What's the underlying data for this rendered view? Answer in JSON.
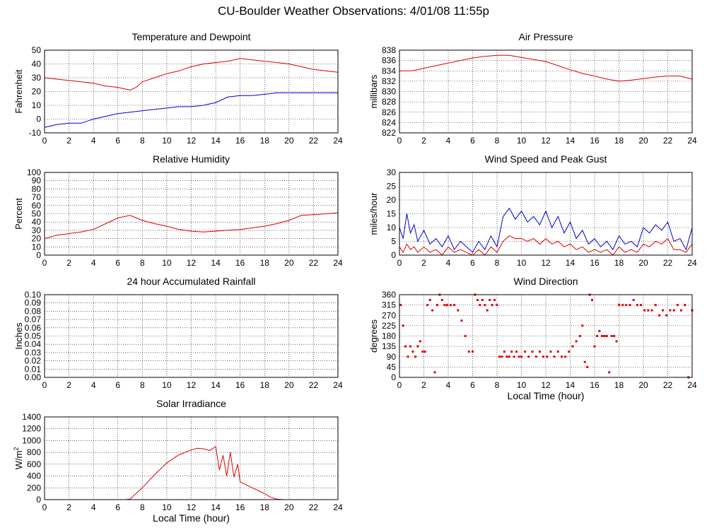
{
  "page_title": "CU-Boulder Weather Observations: 4/01/08 11:55p",
  "colors": {
    "primary": "#dd0000",
    "secondary": "#0000cc",
    "grid": "#000000"
  },
  "chart_data": [
    {
      "id": "temperature",
      "type": "line",
      "title": "Temperature and Dewpoint",
      "xlabel": "",
      "ylabel": "Fahrenheit",
      "xlim": [
        0,
        24
      ],
      "ylim": [
        -10,
        50
      ],
      "xticks": [
        0,
        2,
        4,
        6,
        8,
        10,
        12,
        14,
        16,
        18,
        20,
        22,
        24
      ],
      "yticks": [
        -10,
        0,
        10,
        20,
        30,
        40,
        50
      ],
      "ytick_labels": [
        "-10",
        "0",
        "10",
        "20",
        "30",
        "40",
        "50"
      ],
      "grid": true,
      "series": [
        {
          "color": "#dd0000",
          "x": [
            0,
            1,
            2,
            3,
            4,
            5,
            6,
            6.5,
            7,
            7.5,
            8,
            9,
            10,
            11,
            12,
            13,
            14,
            15,
            16,
            17,
            18,
            19,
            20,
            21,
            22,
            23,
            24
          ],
          "y": [
            30,
            29,
            28,
            27,
            26,
            24,
            23,
            22,
            21,
            23,
            27,
            30,
            33,
            35,
            38,
            40,
            41,
            42,
            44,
            43,
            42,
            41,
            40,
            38,
            36,
            35,
            34
          ]
        },
        {
          "color": "#0000cc",
          "x": [
            0,
            1,
            2,
            3,
            4,
            5,
            6,
            7,
            8,
            9,
            10,
            11,
            12,
            13,
            14,
            15,
            16,
            17,
            18,
            19,
            20,
            21,
            22,
            23,
            24
          ],
          "y": [
            -6,
            -4,
            -3,
            -3,
            0,
            2,
            4,
            5,
            6,
            7,
            8,
            9,
            9,
            10,
            12,
            16,
            17,
            17,
            18,
            19,
            19,
            19,
            19,
            19,
            19
          ]
        }
      ]
    },
    {
      "id": "pressure",
      "type": "line",
      "title": "Air Pressure",
      "xlabel": "",
      "ylabel": "millibars",
      "xlim": [
        0,
        24
      ],
      "ylim": [
        822,
        838
      ],
      "xticks": [
        0,
        2,
        4,
        6,
        8,
        10,
        12,
        14,
        16,
        18,
        20,
        22,
        24
      ],
      "yticks": [
        822,
        824,
        826,
        828,
        830,
        832,
        834,
        836,
        838
      ],
      "ytick_labels": [
        "822",
        "824",
        "826",
        "828",
        "830",
        "832",
        "834",
        "836",
        "838"
      ],
      "grid": true,
      "series": [
        {
          "color": "#dd0000",
          "x": [
            0,
            1,
            2,
            3,
            4,
            5,
            6,
            7,
            8,
            9,
            10,
            11,
            12,
            13,
            14,
            15,
            16,
            17,
            18,
            19,
            20,
            21,
            22,
            23,
            24
          ],
          "y": [
            834,
            834,
            834.5,
            835,
            835.5,
            836,
            836.5,
            836.8,
            837,
            837,
            836.6,
            836.2,
            835.8,
            835,
            834.2,
            833.5,
            833,
            832.4,
            832,
            832.2,
            832.5,
            832.8,
            833,
            833,
            832.4
          ]
        }
      ]
    },
    {
      "id": "humidity",
      "type": "line",
      "title": "Relative Humidity",
      "xlabel": "",
      "ylabel": "Percent",
      "xlim": [
        0,
        24
      ],
      "ylim": [
        0,
        100
      ],
      "xticks": [
        0,
        2,
        4,
        6,
        8,
        10,
        12,
        14,
        16,
        18,
        20,
        22,
        24
      ],
      "yticks": [
        0,
        10,
        20,
        30,
        40,
        50,
        60,
        70,
        80,
        90,
        100
      ],
      "ytick_labels": [
        "0",
        "10",
        "20",
        "30",
        "40",
        "50",
        "60",
        "70",
        "80",
        "90",
        "100"
      ],
      "grid": true,
      "series": [
        {
          "color": "#dd0000",
          "x": [
            0,
            1,
            2,
            3,
            4,
            5,
            6,
            7,
            8,
            9,
            10,
            11,
            12,
            13,
            14,
            15,
            16,
            17,
            18,
            19,
            20,
            21,
            22,
            23,
            24
          ],
          "y": [
            20,
            24,
            26,
            28,
            31,
            38,
            45,
            48,
            42,
            38,
            35,
            31,
            29,
            28,
            29,
            30,
            31,
            33,
            35,
            38,
            42,
            48,
            49,
            50,
            51
          ]
        }
      ]
    },
    {
      "id": "wind-speed",
      "type": "line",
      "title": "Wind Speed and Peak Gust",
      "xlabel": "",
      "ylabel": "miles/hour",
      "xlim": [
        0,
        24
      ],
      "ylim": [
        0,
        30
      ],
      "xticks": [
        0,
        2,
        4,
        6,
        8,
        10,
        12,
        14,
        16,
        18,
        20,
        22,
        24
      ],
      "yticks": [
        0,
        5,
        10,
        15,
        20,
        25,
        30
      ],
      "ytick_labels": [
        "0",
        "5",
        "10",
        "15",
        "20",
        "25",
        "30"
      ],
      "grid": true,
      "series": [
        {
          "color": "#0000cc",
          "x": [
            0,
            0.3,
            0.6,
            0.9,
            1.2,
            1.5,
            2,
            2.5,
            3,
            3.5,
            4,
            4.5,
            5,
            5.5,
            6,
            6.5,
            7,
            7.5,
            8,
            8.5,
            9,
            9.5,
            10,
            10.5,
            11,
            11.5,
            12,
            12.5,
            13,
            13.5,
            14,
            14.5,
            15,
            15.5,
            16,
            16.5,
            17,
            17.5,
            18,
            18.5,
            19,
            19.5,
            20,
            20.5,
            21,
            21.5,
            22,
            22.5,
            23,
            23.5,
            24
          ],
          "y": [
            10,
            6,
            15,
            8,
            11,
            5,
            9,
            4,
            6,
            3,
            7,
            2,
            5,
            3,
            1,
            5,
            2,
            7,
            3,
            14,
            17,
            13,
            16,
            12,
            14,
            11,
            16,
            10,
            14,
            8,
            12,
            6,
            9,
            4,
            6,
            3,
            5,
            2,
            7,
            4,
            5,
            3,
            10,
            8,
            11,
            9,
            12,
            5,
            6,
            2,
            10
          ]
        },
        {
          "color": "#dd0000",
          "x": [
            0,
            0.3,
            0.6,
            0.9,
            1.2,
            1.5,
            2,
            2.5,
            3,
            3.5,
            4,
            4.5,
            5,
            5.5,
            6,
            6.5,
            7,
            7.5,
            8,
            8.5,
            9,
            9.5,
            10,
            10.5,
            11,
            11.5,
            12,
            12.5,
            13,
            13.5,
            14,
            14.5,
            15,
            15.5,
            16,
            16.5,
            17,
            17.5,
            18,
            18.5,
            19,
            19.5,
            20,
            20.5,
            21,
            21.5,
            22,
            22.5,
            23,
            23.5,
            24
          ],
          "y": [
            3,
            1,
            4,
            2,
            3,
            1,
            3,
            1,
            2,
            0,
            3,
            1,
            2,
            1,
            0,
            2,
            0,
            3,
            1,
            5,
            7,
            6,
            6,
            5,
            6,
            4,
            6,
            4,
            5,
            3,
            4,
            2,
            3,
            1,
            2,
            1,
            2,
            0,
            3,
            1,
            2,
            1,
            4,
            3,
            5,
            4,
            6,
            2,
            2,
            1,
            4
          ]
        }
      ]
    },
    {
      "id": "rainfall",
      "type": "line",
      "title": "24 hour Accumulated Rainfall",
      "xlabel": "",
      "ylabel": "Inches",
      "xlim": [
        0,
        24
      ],
      "ylim": [
        0,
        0.1
      ],
      "xticks": [
        0,
        2,
        4,
        6,
        8,
        10,
        12,
        14,
        16,
        18,
        20,
        22,
        24
      ],
      "yticks": [
        0,
        0.01,
        0.02,
        0.03,
        0.04,
        0.05,
        0.06,
        0.07,
        0.08,
        0.09,
        0.1
      ],
      "ytick_labels": [
        "0.00",
        "0.01",
        "0.02",
        "0.03",
        "0.04",
        "0.05",
        "0.06",
        "0.07",
        "0.08",
        "0.09",
        "0.10"
      ],
      "grid": true,
      "series": [
        {
          "color": "#dd0000",
          "x": [
            0,
            24
          ],
          "y": [
            0,
            0
          ]
        }
      ]
    },
    {
      "id": "wind-direction",
      "type": "scatter",
      "title": "Wind Direction",
      "xlabel": "Local Time (hour)",
      "ylabel": "degrees",
      "xlim": [
        0,
        24
      ],
      "ylim": [
        0,
        360
      ],
      "xticks": [
        0,
        2,
        4,
        6,
        8,
        10,
        12,
        14,
        16,
        18,
        20,
        22,
        24
      ],
      "yticks": [
        0,
        45,
        90,
        135,
        180,
        225,
        270,
        315,
        360
      ],
      "ytick_labels": [
        "0",
        "45",
        "90",
        "135",
        "180",
        "225",
        "270",
        "315",
        "360"
      ],
      "grid": true,
      "series": [
        {
          "color": "#dd0000",
          "x": [
            0.1,
            0.3,
            0.5,
            0.7,
            0.9,
            1.1,
            1.3,
            1.5,
            1.7,
            1.9,
            2.1,
            2.3,
            2.5,
            2.7,
            2.9,
            3.1,
            3.3,
            3.5,
            3.7,
            3.9,
            4.2,
            4.5,
            4.8,
            5.1,
            5.4,
            5.7,
            6.0,
            6.2,
            6.4,
            6.6,
            6.8,
            7.0,
            7.2,
            7.4,
            7.6,
            7.8,
            8.0,
            8.2,
            8.4,
            8.6,
            8.8,
            9.0,
            9.2,
            9.4,
            9.6,
            9.8,
            10.0,
            10.3,
            10.6,
            10.9,
            11.2,
            11.5,
            11.8,
            12.1,
            12.4,
            12.7,
            13.0,
            13.3,
            13.6,
            13.9,
            14.2,
            14.5,
            14.8,
            15.0,
            15.2,
            15.4,
            15.6,
            15.8,
            16.0,
            16.2,
            16.4,
            16.6,
            16.8,
            17.0,
            17.2,
            17.4,
            17.6,
            17.8,
            18.0,
            18.3,
            18.6,
            18.9,
            19.2,
            19.5,
            19.8,
            20.1,
            20.4,
            20.7,
            21.0,
            21.3,
            21.6,
            21.9,
            22.2,
            22.5,
            22.8,
            23.1,
            23.4,
            23.7,
            24.0
          ],
          "y": [
            315,
            225,
            135,
            90,
            135,
            112,
            90,
            135,
            157,
            112,
            112,
            315,
            337,
            292,
            22,
            315,
            360,
            337,
            315,
            315,
            315,
            315,
            292,
            247,
            180,
            112,
            112,
            360,
            337,
            315,
            337,
            315,
            292,
            337,
            315,
            337,
            315,
            90,
            90,
            112,
            90,
            90,
            112,
            90,
            112,
            90,
            90,
            112,
            90,
            112,
            90,
            112,
            90,
            90,
            112,
            90,
            112,
            90,
            90,
            112,
            135,
            157,
            180,
            225,
            67,
            45,
            360,
            337,
            135,
            180,
            202,
            180,
            180,
            180,
            22,
            180,
            180,
            157,
            315,
            315,
            315,
            315,
            337,
            315,
            315,
            292,
            292,
            292,
            315,
            270,
            292,
            270,
            292,
            292,
            315,
            292,
            315,
            0,
            292
          ]
        }
      ]
    },
    {
      "id": "solar",
      "type": "line",
      "title": "Solar Irradiance",
      "xlabel": "Local Time (hour)",
      "ylabel": "W/m",
      "ylabel_sup": "2",
      "xlim": [
        0,
        24
      ],
      "ylim": [
        0,
        1400
      ],
      "xticks": [
        0,
        2,
        4,
        6,
        8,
        10,
        12,
        14,
        16,
        18,
        20,
        22,
        24
      ],
      "yticks": [
        0,
        200,
        400,
        600,
        800,
        1000,
        1200,
        1400
      ],
      "ytick_labels": [
        "0",
        "200",
        "400",
        "600",
        "800",
        "1000",
        "1200",
        "1400"
      ],
      "grid": true,
      "series": [
        {
          "color": "#dd0000",
          "x": [
            0,
            6.6,
            7,
            8,
            9,
            10,
            11,
            12,
            12.5,
            13,
            13.5,
            14,
            14.3,
            14.6,
            14.9,
            15.2,
            15.5,
            15.8,
            16,
            16.5,
            17,
            17.5,
            18,
            18.5,
            19,
            19.5,
            24
          ],
          "y": [
            0,
            0,
            10,
            200,
            420,
            620,
            760,
            840,
            870,
            860,
            830,
            900,
            500,
            750,
            400,
            800,
            380,
            600,
            300,
            250,
            200,
            150,
            100,
            40,
            10,
            0,
            0
          ]
        }
      ]
    }
  ]
}
